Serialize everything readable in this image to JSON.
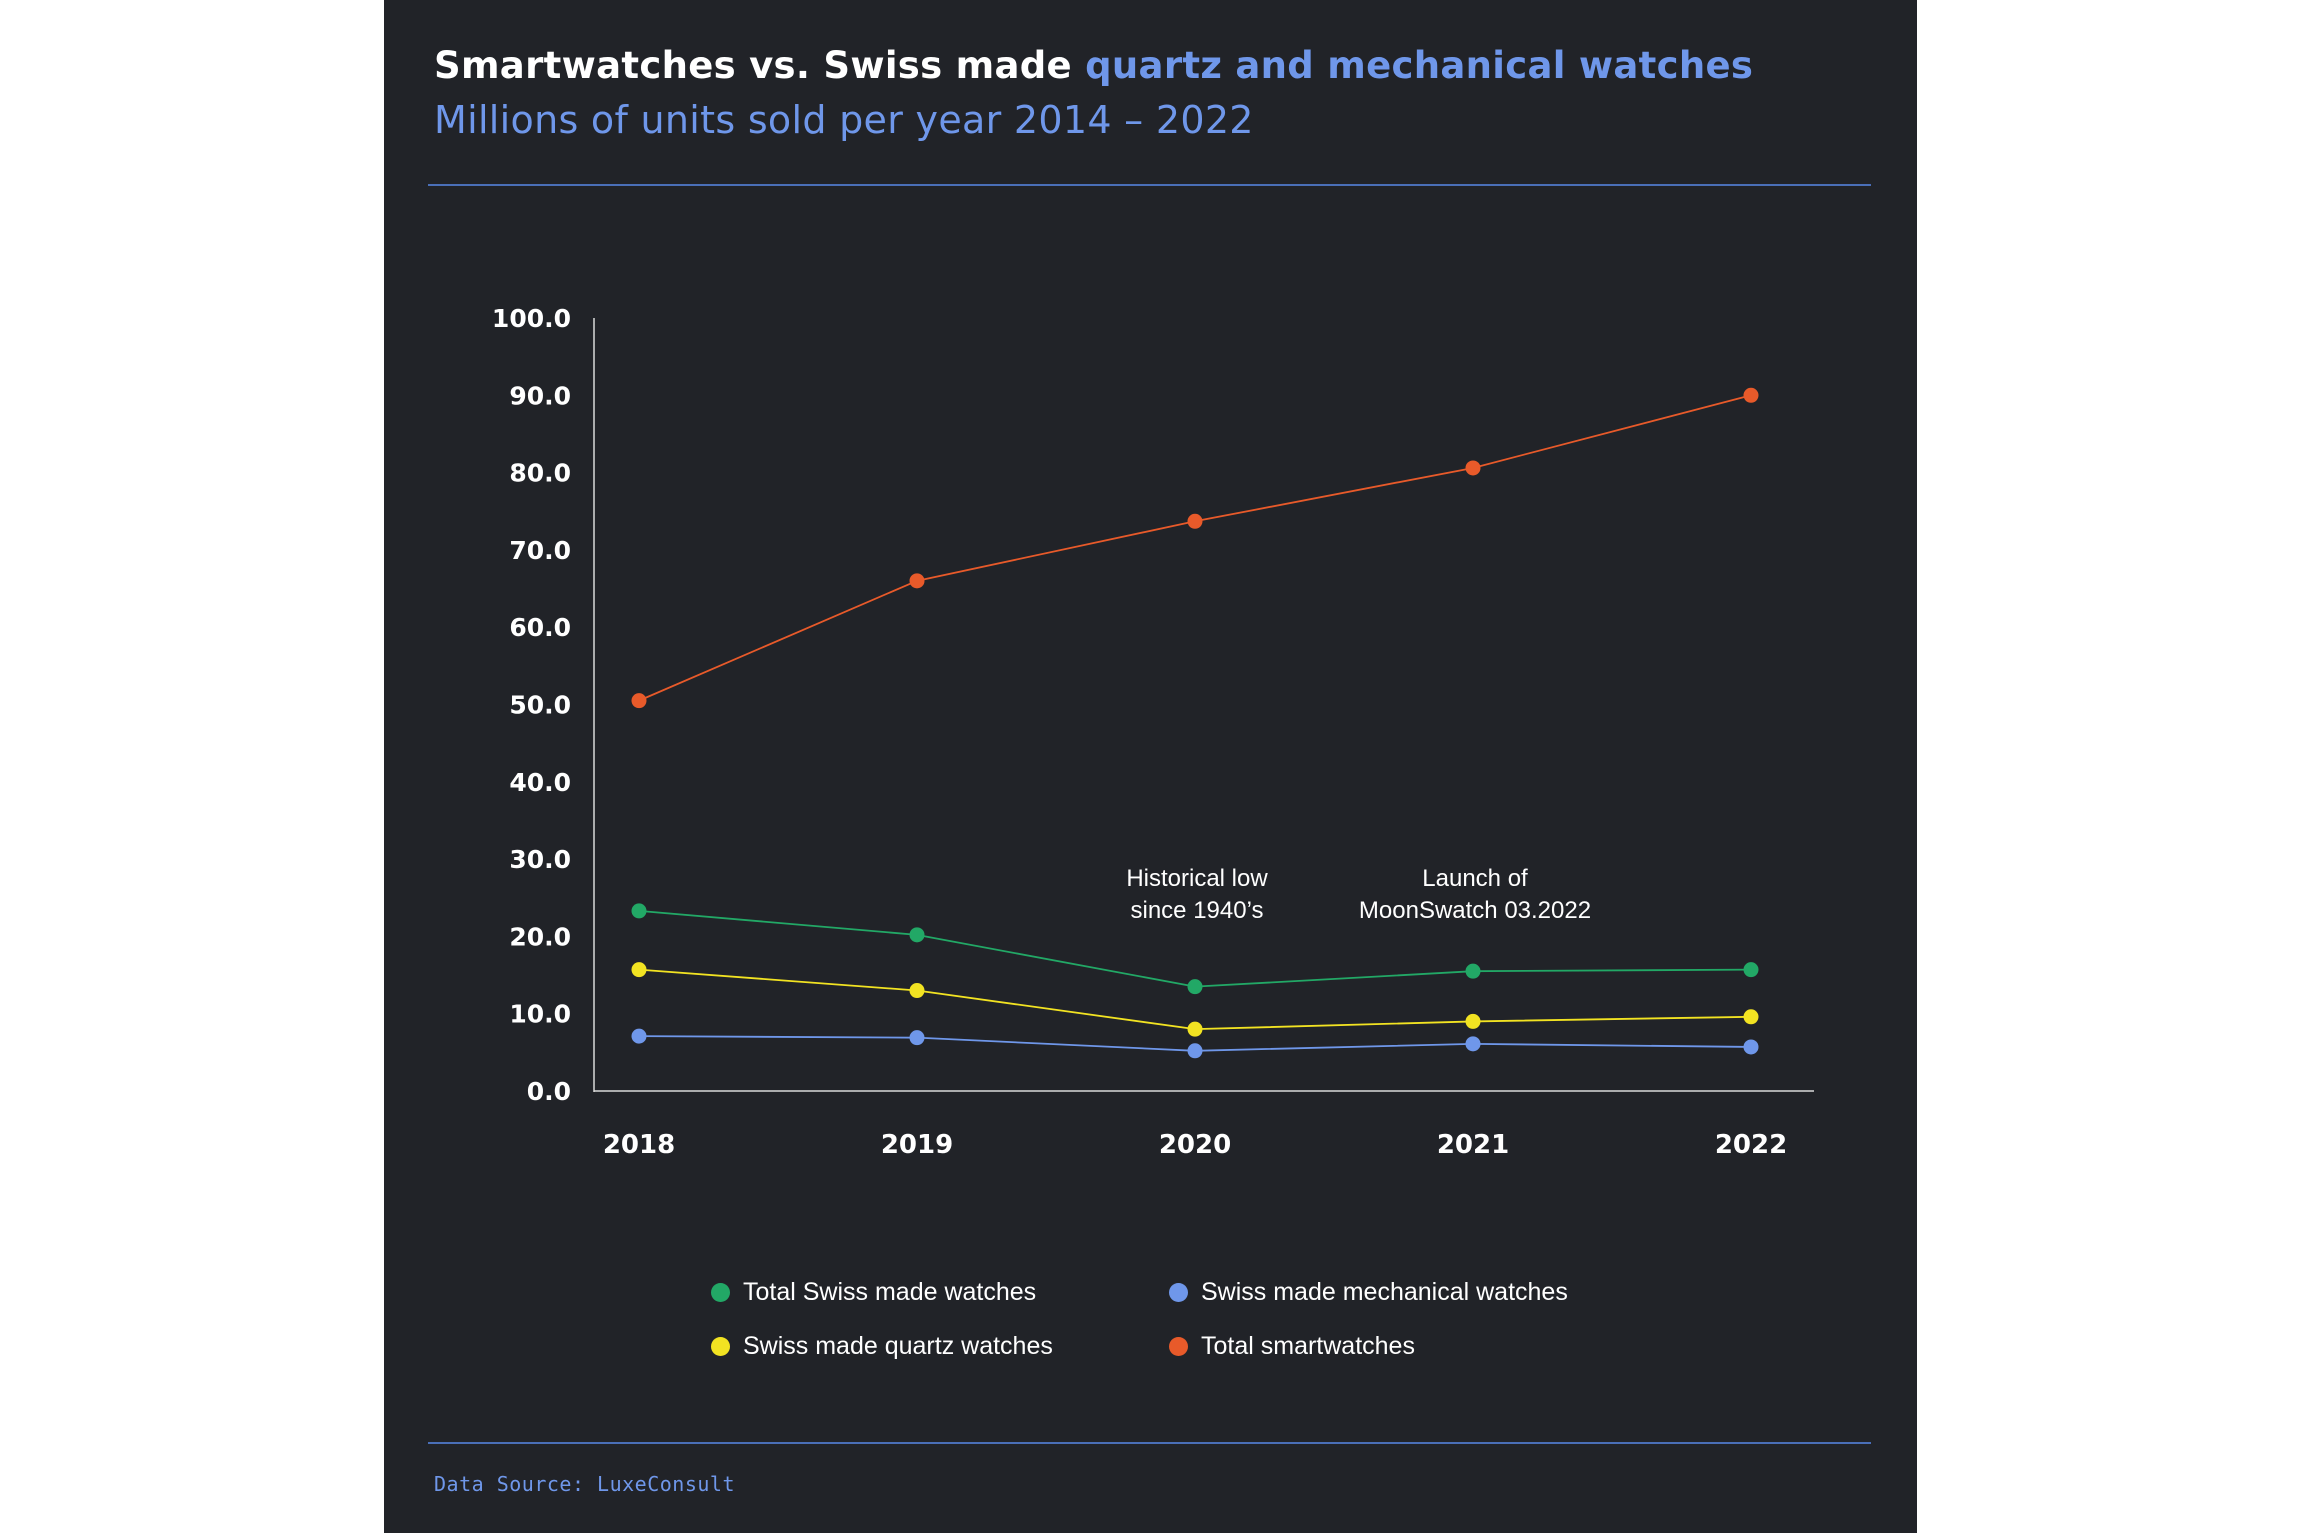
{
  "title": {
    "part1": "Smartwatches vs. Swiss made ",
    "part2": "quartz and mechanical watches",
    "subtitle": "Millions of units sold per year 2014 – 2022"
  },
  "chart_data": {
    "type": "line",
    "title": "Smartwatches vs. Swiss made quartz and mechanical watches",
    "subtitle": "Millions of units sold per year 2014 – 2022",
    "xlabel": "",
    "ylabel": "",
    "categories": [
      "2018",
      "2019",
      "2020",
      "2021",
      "2022"
    ],
    "ylim": [
      0,
      100
    ],
    "yticks": [
      "100.0",
      "90.0",
      "80.0",
      "70.0",
      "60.0",
      "50.0",
      "40.0",
      "30.0",
      "20.0",
      "10.0",
      "0.0"
    ],
    "ytick_values": [
      100,
      90,
      80,
      70,
      60,
      50,
      40,
      30,
      20,
      10,
      0
    ],
    "grid": false,
    "series": [
      {
        "name": "Total smartwatches",
        "color": "#e85a2a",
        "values": [
          50.5,
          66.0,
          73.7,
          80.6,
          90.0
        ]
      },
      {
        "name": "Total Swiss made watches",
        "color": "#22a866",
        "values": [
          23.3,
          20.2,
          13.5,
          15.5,
          15.7
        ]
      },
      {
        "name": "Swiss made quartz watches",
        "color": "#f2e322",
        "values": [
          15.7,
          13.0,
          8.0,
          9.0,
          9.6
        ]
      },
      {
        "name": "Swiss made mechanical watches",
        "color": "#6f97ea",
        "values": [
          7.1,
          6.9,
          5.2,
          6.1,
          5.7
        ]
      }
    ],
    "annotations": [
      {
        "lines": [
          "Historical low",
          "since 1940’s"
        ],
        "category": "2020"
      },
      {
        "lines": [
          "Launch of",
          "MoonSwatch 03.2022"
        ],
        "category": "2021"
      }
    ],
    "legend": [
      {
        "label": "Total Swiss made watches",
        "color": "#22a866"
      },
      {
        "label": "Swiss made mechanical watches",
        "color": "#6f97ea"
      },
      {
        "label": "Swiss made quartz watches",
        "color": "#f2e322"
      },
      {
        "label": "Total smartwatches",
        "color": "#e85a2a"
      }
    ],
    "legend_position": "bottom-center"
  },
  "source": "Data Source: LuxeConsult"
}
